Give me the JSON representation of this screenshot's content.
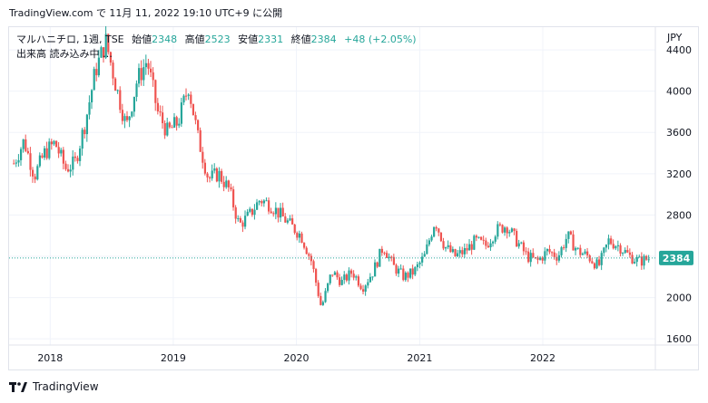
{
  "header": {
    "caption": "TradingView.com で 11月 11, 2022 19:10 UTC+9 に公開"
  },
  "legend": {
    "symbol": "マルハニチロ, 1週, TSE",
    "open_label": "始値",
    "open": "2348",
    "high_label": "高値",
    "high": "2523",
    "low_label": "安値",
    "low": "2331",
    "close_label": "終値",
    "close": "2384",
    "change": "+48 (+2.05%)",
    "volume_text": "出来高 読み込み中 …",
    "currency": "JPY"
  },
  "footer": {
    "brand": "TradingView"
  },
  "colors": {
    "up": "#26a69a",
    "down": "#ef5350",
    "grid": "#f0f3fa",
    "price_tag": "#26a69a"
  },
  "chart_data": {
    "type": "candlestick",
    "interval": "1W",
    "x_ticks": [
      "2018",
      "2019",
      "2020",
      "2021",
      "2022"
    ],
    "y_ticks": [
      "1600",
      "2000",
      "2400",
      "2800",
      "3200",
      "3600",
      "4000",
      "4400"
    ],
    "ylim": [
      1540,
      4620
    ],
    "last_price": 2384,
    "last_price_label": "2384",
    "grid": true,
    "series": [
      {
        "date": "2017-09",
        "value": 3300
      },
      {
        "date": "2017-10",
        "value": 3520
      },
      {
        "date": "2017-11",
        "value": 3180
      },
      {
        "date": "2017-12",
        "value": 3400
      },
      {
        "date": "2018-01",
        "value": 3500
      },
      {
        "date": "2018-02",
        "value": 3250
      },
      {
        "date": "2018-03",
        "value": 3300
      },
      {
        "date": "2018-04",
        "value": 3700
      },
      {
        "date": "2018-05",
        "value": 4200
      },
      {
        "date": "2018-06",
        "value": 4480
      },
      {
        "date": "2018-07",
        "value": 4050
      },
      {
        "date": "2018-08",
        "value": 3650
      },
      {
        "date": "2018-09",
        "value": 4100
      },
      {
        "date": "2018-10",
        "value": 4300
      },
      {
        "date": "2018-11",
        "value": 3800
      },
      {
        "date": "2018-12",
        "value": 3600
      },
      {
        "date": "2019-01",
        "value": 3700
      },
      {
        "date": "2019-02",
        "value": 4050
      },
      {
        "date": "2019-03",
        "value": 3550
      },
      {
        "date": "2019-04",
        "value": 3150
      },
      {
        "date": "2019-05",
        "value": 3200
      },
      {
        "date": "2019-06",
        "value": 3050
      },
      {
        "date": "2019-07",
        "value": 2700
      },
      {
        "date": "2019-08",
        "value": 2800
      },
      {
        "date": "2019-09",
        "value": 2950
      },
      {
        "date": "2019-10",
        "value": 2900
      },
      {
        "date": "2019-11",
        "value": 2800
      },
      {
        "date": "2019-12",
        "value": 2700
      },
      {
        "date": "2020-01",
        "value": 2600
      },
      {
        "date": "2020-02",
        "value": 2350
      },
      {
        "date": "2020-03",
        "value": 1900
      },
      {
        "date": "2020-04",
        "value": 2250
      },
      {
        "date": "2020-05",
        "value": 2150
      },
      {
        "date": "2020-06",
        "value": 2250
      },
      {
        "date": "2020-07",
        "value": 2100
      },
      {
        "date": "2020-08",
        "value": 2250
      },
      {
        "date": "2020-09",
        "value": 2500
      },
      {
        "date": "2020-10",
        "value": 2300
      },
      {
        "date": "2020-11",
        "value": 2200
      },
      {
        "date": "2020-12",
        "value": 2250
      },
      {
        "date": "2021-01",
        "value": 2400
      },
      {
        "date": "2021-02",
        "value": 2750
      },
      {
        "date": "2021-03",
        "value": 2500
      },
      {
        "date": "2021-04",
        "value": 2400
      },
      {
        "date": "2021-05",
        "value": 2450
      },
      {
        "date": "2021-06",
        "value": 2550
      },
      {
        "date": "2021-07",
        "value": 2500
      },
      {
        "date": "2021-08",
        "value": 2650
      },
      {
        "date": "2021-09",
        "value": 2700
      },
      {
        "date": "2021-10",
        "value": 2550
      },
      {
        "date": "2021-11",
        "value": 2400
      },
      {
        "date": "2021-12",
        "value": 2350
      },
      {
        "date": "2022-01",
        "value": 2450
      },
      {
        "date": "2022-02",
        "value": 2400
      },
      {
        "date": "2022-03",
        "value": 2600
      },
      {
        "date": "2022-04",
        "value": 2450
      },
      {
        "date": "2022-05",
        "value": 2400
      },
      {
        "date": "2022-06",
        "value": 2300
      },
      {
        "date": "2022-07",
        "value": 2550
      },
      {
        "date": "2022-08",
        "value": 2500
      },
      {
        "date": "2022-09",
        "value": 2400
      },
      {
        "date": "2022-10",
        "value": 2350
      },
      {
        "date": "2022-11",
        "value": 2384
      }
    ]
  }
}
